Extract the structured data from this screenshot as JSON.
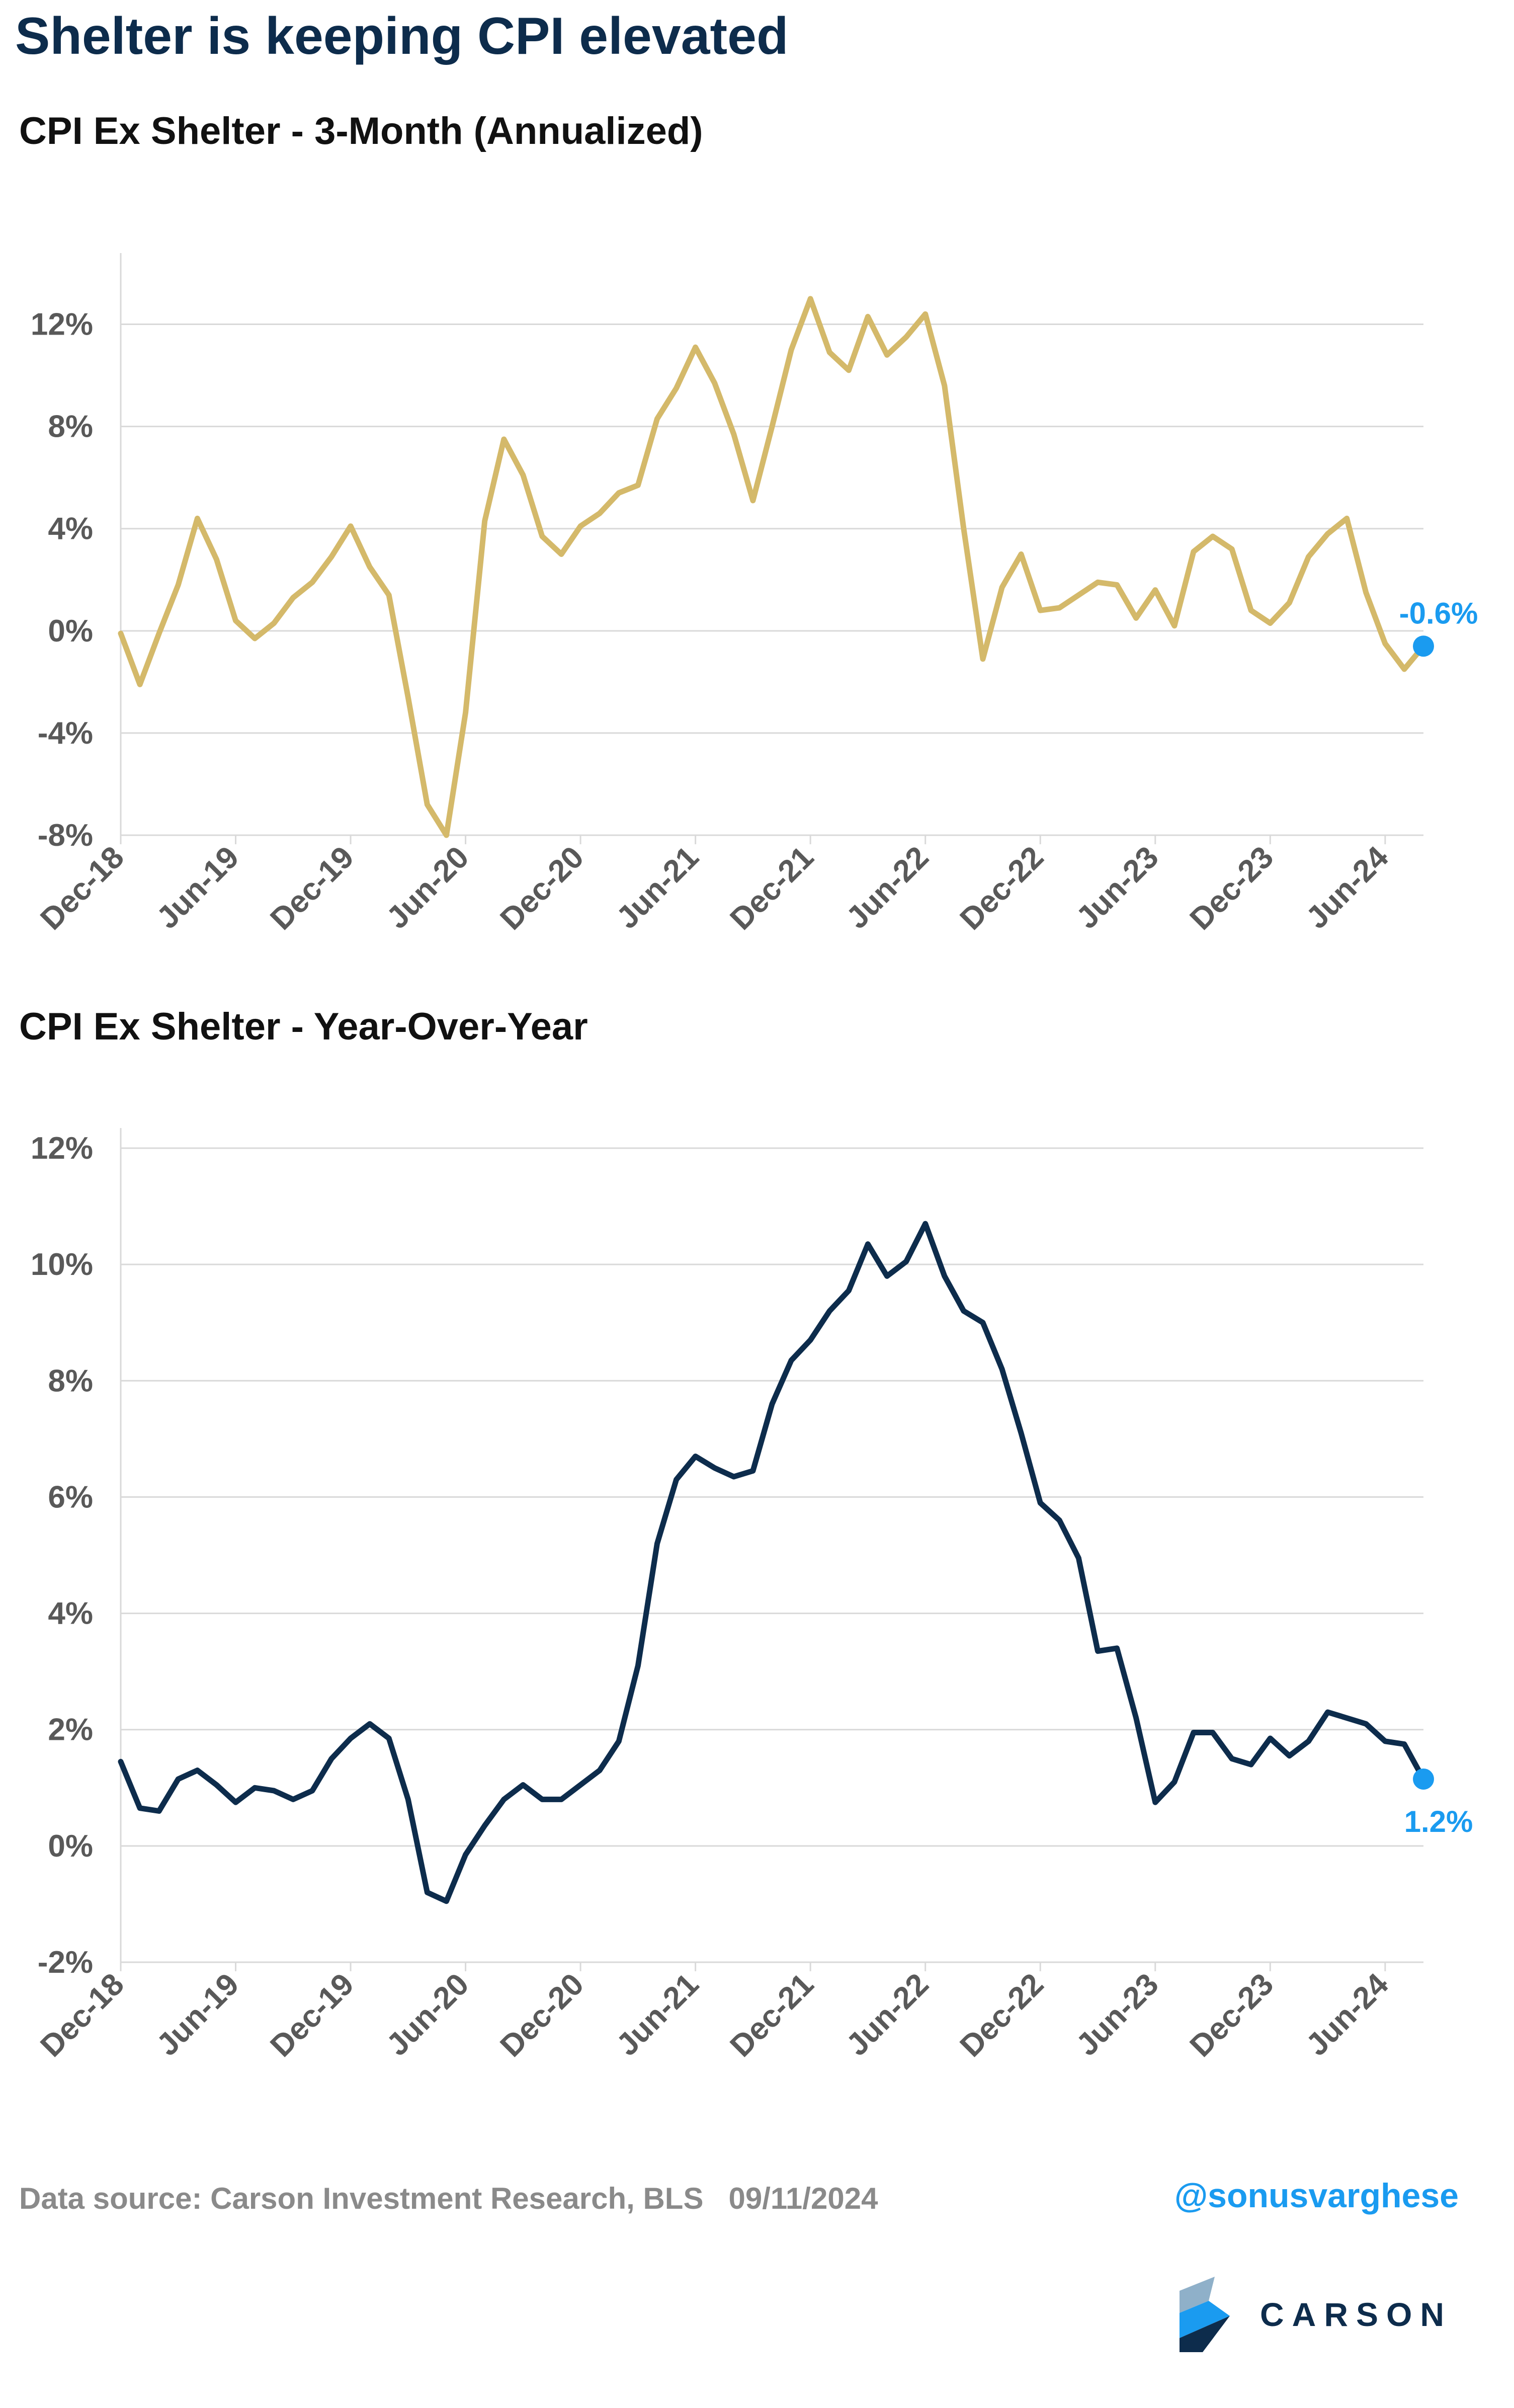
{
  "title": "Shelter is keeping CPI elevated",
  "chart_data": [
    {
      "type": "line",
      "title": "CPI Ex Shelter - 3-Month (Annualized)",
      "x_tick_labels": [
        "Dec-18",
        "Jun-19",
        "Dec-19",
        "Jun-20",
        "Dec-20",
        "Jun-21",
        "Dec-21",
        "Jun-22",
        "Dec-22",
        "Jun-23",
        "Dec-23",
        "Jun-24"
      ],
      "y_ticks": [
        -8,
        -4,
        0,
        4,
        8,
        12
      ],
      "y_tick_labels": [
        "-8%",
        "-4%",
        "0%",
        "4%",
        "8%",
        "12%"
      ],
      "ylim": [
        -8,
        14
      ],
      "grid": "horizontal",
      "series": [
        {
          "color": "#d4b96a",
          "x": [
            "Dec-18",
            "Jan-19",
            "Feb-19",
            "Mar-19",
            "Apr-19",
            "May-19",
            "Jun-19",
            "Jul-19",
            "Aug-19",
            "Sep-19",
            "Oct-19",
            "Nov-19",
            "Dec-19",
            "Jan-20",
            "Feb-20",
            "Mar-20",
            "Apr-20",
            "May-20",
            "Jun-20",
            "Jul-20",
            "Aug-20",
            "Sep-20",
            "Oct-20",
            "Nov-20",
            "Dec-20",
            "Jan-21",
            "Feb-21",
            "Mar-21",
            "Apr-21",
            "May-21",
            "Jun-21",
            "Jul-21",
            "Aug-21",
            "Sep-21",
            "Oct-21",
            "Nov-21",
            "Dec-21",
            "Jan-22",
            "Feb-22",
            "Mar-22",
            "Apr-22",
            "May-22",
            "Jun-22",
            "Jul-22",
            "Aug-22",
            "Sep-22",
            "Oct-22",
            "Nov-22",
            "Dec-22",
            "Jan-23",
            "Feb-23",
            "Mar-23",
            "Apr-23",
            "May-23",
            "Jun-23",
            "Jul-23",
            "Aug-23",
            "Sep-23",
            "Oct-23",
            "Nov-23",
            "Dec-23",
            "Jan-24",
            "Feb-24",
            "Mar-24",
            "Apr-24",
            "May-24",
            "Jun-24",
            "Jul-24",
            "Aug-24"
          ],
          "values": [
            -0.1,
            -2.1,
            -0.1,
            1.8,
            4.4,
            2.8,
            0.4,
            -0.3,
            0.3,
            1.3,
            1.9,
            2.9,
            4.1,
            2.5,
            1.4,
            -2.6,
            -6.8,
            -8,
            -3.2,
            4.3,
            7.5,
            6.1,
            3.7,
            3,
            4.1,
            4.6,
            5.4,
            5.7,
            8.3,
            9.5,
            11.1,
            9.7,
            7.7,
            5.1,
            8,
            11,
            13,
            10.9,
            10.2,
            12.3,
            10.8,
            11.5,
            12.4,
            9.6,
            4,
            -1.1,
            1.7,
            3,
            0.8,
            0.9,
            1.4,
            1.9,
            1.8,
            0.5,
            1.6,
            0.2,
            3.1,
            3.7,
            3.2,
            0.8,
            0.3,
            1.1,
            2.9,
            3.8,
            4.4,
            1.5,
            -0.5,
            -1.5,
            -0.6
          ]
        }
      ],
      "end_label": "-0.6%"
    },
    {
      "type": "line",
      "title": "CPI Ex Shelter - Year-Over-Year",
      "x_tick_labels": [
        "Dec-18",
        "Jun-19",
        "Dec-19",
        "Jun-20",
        "Dec-20",
        "Jun-21",
        "Dec-21",
        "Jun-22",
        "Dec-22",
        "Jun-23",
        "Dec-23",
        "Jun-24"
      ],
      "y_ticks": [
        -2,
        0,
        2,
        4,
        6,
        8,
        10,
        12
      ],
      "y_tick_labels": [
        "-2%",
        "0%",
        "2%",
        "4%",
        "6%",
        "8%",
        "10%",
        "12%"
      ],
      "ylim": [
        -2,
        12
      ],
      "grid": "horizontal",
      "series": [
        {
          "color": "#0d2c4c",
          "x": [
            "Dec-18",
            "Jan-19",
            "Feb-19",
            "Mar-19",
            "Apr-19",
            "May-19",
            "Jun-19",
            "Jul-19",
            "Aug-19",
            "Sep-19",
            "Oct-19",
            "Nov-19",
            "Dec-19",
            "Jan-20",
            "Feb-20",
            "Mar-20",
            "Apr-20",
            "May-20",
            "Jun-20",
            "Jul-20",
            "Aug-20",
            "Sep-20",
            "Oct-20",
            "Nov-20",
            "Dec-20",
            "Jan-21",
            "Feb-21",
            "Mar-21",
            "Apr-21",
            "May-21",
            "Jun-21",
            "Jul-21",
            "Aug-21",
            "Sep-21",
            "Oct-21",
            "Nov-21",
            "Dec-21",
            "Jan-22",
            "Feb-22",
            "Mar-22",
            "Apr-22",
            "May-22",
            "Jun-22",
            "Jul-22",
            "Aug-22",
            "Sep-22",
            "Oct-22",
            "Nov-22",
            "Dec-22",
            "Jan-23",
            "Feb-23",
            "Mar-23",
            "Apr-23",
            "May-23",
            "Jun-23",
            "Jul-23",
            "Aug-23",
            "Sep-23",
            "Oct-23",
            "Nov-23",
            "Dec-23",
            "Jan-24",
            "Feb-24",
            "Mar-24",
            "Apr-24",
            "May-24",
            "Jun-24",
            "Jul-24",
            "Aug-24"
          ],
          "values": [
            1.45,
            0.65,
            0.6,
            1.15,
            1.3,
            1.05,
            0.75,
            1,
            0.95,
            0.8,
            0.95,
            1.5,
            1.85,
            2.1,
            1.85,
            0.8,
            -0.8,
            -0.95,
            -0.15,
            0.35,
            0.8,
            1.05,
            0.8,
            0.8,
            1.05,
            1.3,
            1.8,
            3.1,
            5.2,
            6.3,
            6.7,
            6.5,
            6.35,
            6.45,
            7.6,
            8.35,
            8.7,
            9.2,
            9.55,
            10.35,
            9.8,
            10.05,
            10.7,
            9.8,
            9.2,
            9,
            8.2,
            7.1,
            5.9,
            5.6,
            4.95,
            3.35,
            3.4,
            2.2,
            0.75,
            1.1,
            1.95,
            1.95,
            1.5,
            1.4,
            1.85,
            1.55,
            1.8,
            2.3,
            2.2,
            2.1,
            1.8,
            1.75,
            1.15
          ]
        }
      ],
      "end_label": "1.2%"
    }
  ],
  "footer": {
    "source": "Data source: Carson Investment Research, BLS   09/11/2024",
    "handle": "@sonusvarghese"
  },
  "logo": {
    "text": "CARSON"
  }
}
